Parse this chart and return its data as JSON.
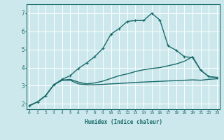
{
  "title": "",
  "xlabel": "Humidex (Indice chaleur)",
  "ylabel": "",
  "background_color": "#cce8ec",
  "grid_color": "#b0d4d8",
  "line_color": "#1a6b6b",
  "x_ticks": [
    0,
    1,
    2,
    3,
    4,
    5,
    6,
    7,
    8,
    9,
    10,
    11,
    12,
    13,
    14,
    15,
    16,
    17,
    18,
    19,
    20,
    21,
    22,
    23
  ],
  "y_ticks": [
    2,
    3,
    4,
    5,
    6,
    7
  ],
  "ylim": [
    1.7,
    7.5
  ],
  "xlim": [
    -0.3,
    23.3
  ],
  "series": [
    {
      "x": [
        0,
        1,
        2,
        3,
        4,
        5,
        6,
        7,
        8,
        9,
        10,
        11,
        12,
        13,
        14,
        15,
        16,
        17,
        18,
        19,
        20,
        21,
        22,
        23
      ],
      "y": [
        1.9,
        2.1,
        2.45,
        3.05,
        3.3,
        3.3,
        3.1,
        3.05,
        3.05,
        3.07,
        3.1,
        3.12,
        3.15,
        3.18,
        3.2,
        3.22,
        3.24,
        3.26,
        3.28,
        3.3,
        3.32,
        3.3,
        3.35,
        3.38
      ],
      "marker": false,
      "linewidth": 1.0
    },
    {
      "x": [
        0,
        1,
        2,
        3,
        4,
        5,
        6,
        7,
        8,
        9,
        10,
        11,
        12,
        13,
        14,
        15,
        16,
        17,
        18,
        19,
        20,
        21,
        22,
        23
      ],
      "y": [
        1.9,
        2.1,
        2.45,
        3.05,
        3.3,
        3.35,
        3.2,
        3.1,
        3.15,
        3.25,
        3.4,
        3.55,
        3.65,
        3.78,
        3.88,
        3.95,
        4.0,
        4.1,
        4.2,
        4.35,
        4.6,
        3.85,
        3.5,
        3.45
      ],
      "marker": false,
      "linewidth": 1.0
    },
    {
      "x": [
        0,
        1,
        2,
        3,
        4,
        5,
        6,
        7,
        8,
        9,
        10,
        11,
        12,
        13,
        14,
        15,
        16,
        17,
        18,
        19,
        20,
        21,
        22,
        23
      ],
      "y": [
        1.9,
        2.1,
        2.45,
        3.05,
        3.35,
        3.55,
        3.95,
        4.25,
        4.6,
        5.05,
        5.85,
        6.15,
        6.55,
        6.6,
        6.6,
        7.0,
        6.62,
        5.2,
        4.95,
        4.6,
        4.55,
        3.85,
        3.5,
        3.45
      ],
      "marker": true,
      "linewidth": 1.0
    }
  ]
}
